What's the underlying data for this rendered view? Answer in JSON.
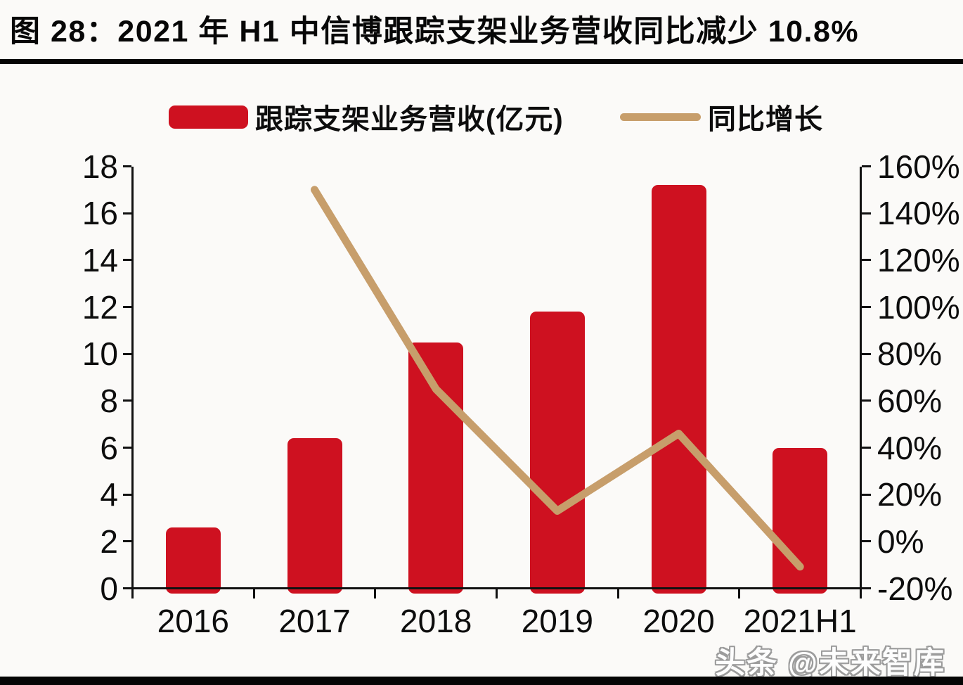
{
  "figure": {
    "title": "图 28：2021 年 H1 中信博跟踪支架业务营收同比减少 10.8%",
    "watermark": "头条 @未来智库"
  },
  "legend": {
    "bar_label": "跟踪支架业务营收(亿元)",
    "line_label": "同比增长"
  },
  "colors": {
    "bar": "#CE1120",
    "line": "#C79E6B",
    "axis": "#111111",
    "background": "#FBFAF8",
    "watermark": "#9C9C9C"
  },
  "chart_data": {
    "type": "combo-bar-line",
    "title": "图 28：2021 年 H1 中信博跟踪支架业务营收同比减少 10.8%",
    "categories": [
      "2016",
      "2017",
      "2018",
      "2019",
      "2020",
      "2021H1"
    ],
    "series": [
      {
        "name": "跟踪支架业务营收(亿元)",
        "type": "bar",
        "axis": "left",
        "color": "#CE1120",
        "values": [
          2.6,
          6.4,
          10.5,
          11.8,
          17.2,
          6.0
        ]
      },
      {
        "name": "同比增长",
        "type": "line",
        "axis": "right",
        "color": "#C79E6B",
        "values": [
          null,
          150,
          65,
          13,
          46,
          -10.8
        ]
      }
    ],
    "left_axis": {
      "min": 0,
      "max": 18,
      "step": 2,
      "tick_labels": [
        "0",
        "2",
        "4",
        "6",
        "8",
        "10",
        "12",
        "14",
        "16",
        "18"
      ]
    },
    "right_axis": {
      "min": -20,
      "max": 160,
      "step": 20,
      "tick_labels": [
        "-20%",
        "0%",
        "20%",
        "40%",
        "60%",
        "80%",
        "100%",
        "120%",
        "140%",
        "160%"
      ]
    },
    "grid": false,
    "legend_position": "top-center"
  }
}
